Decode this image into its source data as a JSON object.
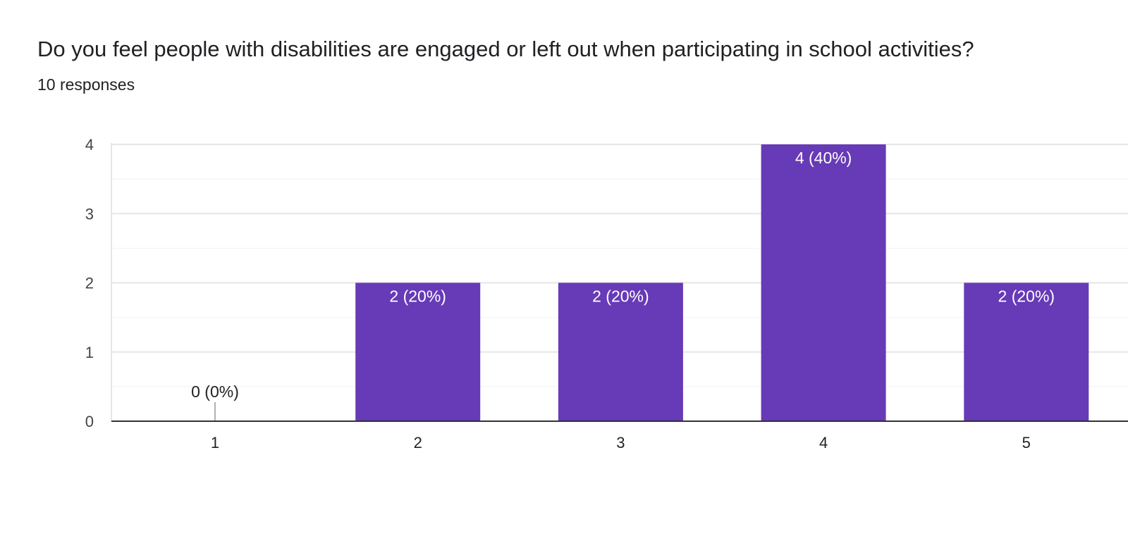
{
  "header": {
    "title": "Do you feel people with disabilities are engaged or left out when participating in school activities?",
    "responses": "10 responses"
  },
  "colors": {
    "bar": "#673ab7",
    "grid": "#e6e6e6",
    "minor_grid": "#f2f2f2",
    "axis": "#333333"
  },
  "chart_data": {
    "type": "bar",
    "title": "Do you feel people with disabilities are engaged or left out when participating in school activities?",
    "subtitle": "10 responses",
    "categories": [
      "1",
      "2",
      "3",
      "4",
      "5"
    ],
    "values": [
      0,
      2,
      2,
      4,
      2
    ],
    "data_labels": [
      "0 (0%)",
      "2 (20%)",
      "2 (20%)",
      "4 (40%)",
      "2 (20%)"
    ],
    "ylim": [
      0,
      4
    ],
    "yticks": [
      0,
      1,
      2,
      3,
      4
    ],
    "grid": true,
    "legend": "none"
  }
}
